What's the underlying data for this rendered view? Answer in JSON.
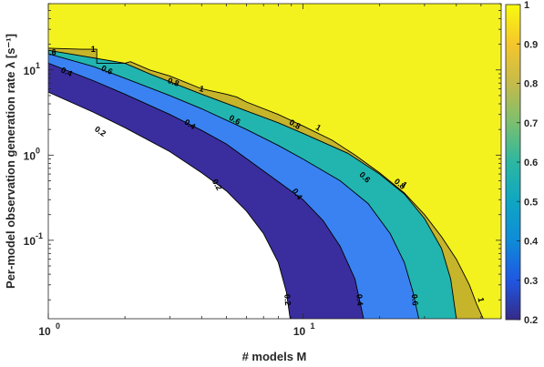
{
  "chart_data": {
    "type": "contour",
    "title": "",
    "xlabel": "# models M",
    "ylabel": "Per-model observation generation rate λ [s⁻¹]",
    "xscale": "log",
    "yscale": "log",
    "xlim": [
      1,
      60
    ],
    "ylim": [
      0.012,
      60
    ],
    "x_ticks": [
      {
        "value": 1,
        "label": "10",
        "exp": "0"
      },
      {
        "value": 10,
        "label": "10",
        "exp": "1"
      }
    ],
    "y_ticks": [
      {
        "value": 0.1,
        "label": "10",
        "exp": "-1"
      },
      {
        "value": 1,
        "label": "10",
        "exp": "0"
      },
      {
        "value": 10,
        "label": "10",
        "exp": "1"
      }
    ],
    "colorbar": {
      "range": [
        0.2,
        1
      ],
      "ticks": [
        "0.2",
        "0.3",
        "0.4",
        "0.5",
        "0.6",
        "0.7",
        "0.8",
        "0.9",
        "1"
      ],
      "colormap": "parula"
    },
    "levels": [
      "0.2",
      "0.4",
      "0.6",
      "0.8",
      "1"
    ],
    "fills": {
      "background": "#ffffff",
      "level_0_2": "#3a2e9e",
      "level_0_4": "#3a82f2",
      "level_0_6": "#22b5b0",
      "level_0_8": "#c6b42b",
      "level_1": "#f4f21e"
    },
    "contours": [
      {
        "level": "0.2",
        "points": [
          [
            1,
            5.5
          ],
          [
            1.5,
            3.2
          ],
          [
            2,
            2.1
          ],
          [
            3,
            1.1
          ],
          [
            4,
            0.62
          ],
          [
            5,
            0.38
          ],
          [
            6,
            0.22
          ],
          [
            7,
            0.12
          ],
          [
            8,
            0.055
          ],
          [
            8.6,
            0.025
          ],
          [
            8.9,
            0.012
          ]
        ]
      },
      {
        "level": "0.4",
        "points": [
          [
            1,
            12
          ],
          [
            1.5,
            7.5
          ],
          [
            2,
            5.2
          ],
          [
            3,
            3
          ],
          [
            4,
            1.95
          ],
          [
            5,
            1.35
          ],
          [
            7,
            0.65
          ],
          [
            10,
            0.3
          ],
          [
            12,
            0.17
          ],
          [
            14,
            0.085
          ],
          [
            16,
            0.035
          ],
          [
            17.3,
            0.012
          ]
        ]
      },
      {
        "level": "0.6",
        "points": [
          [
            1,
            15.5
          ],
          [
            1.5,
            11
          ],
          [
            2,
            8
          ],
          [
            3,
            5
          ],
          [
            4,
            3.5
          ],
          [
            6,
            2
          ],
          [
            8,
            1.3
          ],
          [
            10,
            0.9
          ],
          [
            14,
            0.5
          ],
          [
            18,
            0.27
          ],
          [
            22,
            0.12
          ],
          [
            25,
            0.055
          ],
          [
            27,
            0.025
          ],
          [
            28.5,
            0.012
          ]
        ]
      },
      {
        "level": "0.8",
        "points": [
          [
            1,
            17
          ],
          [
            2,
            12
          ],
          [
            2.5,
            9
          ],
          [
            4,
            5.2
          ],
          [
            6,
            3.3
          ],
          [
            8,
            2.4
          ],
          [
            10,
            1.8
          ],
          [
            15,
            1.05
          ],
          [
            20,
            0.6
          ],
          [
            25,
            0.35
          ],
          [
            30,
            0.18
          ],
          [
            35,
            0.08
          ],
          [
            38,
            0.035
          ],
          [
            40,
            0.012
          ]
        ]
      },
      {
        "level": "1",
        "points": [
          [
            1,
            18
          ],
          [
            1.35,
            17.5
          ],
          [
            1.55,
            17.5
          ],
          [
            1.55,
            12
          ],
          [
            2,
            12
          ],
          [
            2.1,
            12.5
          ],
          [
            2.5,
            10
          ],
          [
            3,
            8.5
          ],
          [
            4,
            6
          ],
          [
            5,
            5.2
          ],
          [
            5.5,
            4.8
          ],
          [
            6,
            4.2
          ],
          [
            8,
            3
          ],
          [
            10,
            2.2
          ],
          [
            13,
            1.5
          ],
          [
            16,
            1
          ],
          [
            20,
            0.62
          ],
          [
            25,
            0.36
          ],
          [
            30,
            0.2
          ],
          [
            35,
            0.11
          ],
          [
            40,
            0.06
          ],
          [
            45,
            0.03
          ],
          [
            48,
            0.018
          ],
          [
            51,
            0.012
          ]
        ]
      }
    ],
    "labels": [
      {
        "text": "0.2",
        "x": 1.6,
        "y": 1.9,
        "rot": 35
      },
      {
        "text": "0.2",
        "x": 4.6,
        "y": 0.45,
        "rot": 60
      },
      {
        "text": "0.2",
        "x": 8.7,
        "y": 0.02,
        "rot": 85
      },
      {
        "text": "0.4",
        "x": 1.18,
        "y": 9.5,
        "rot": 25
      },
      {
        "text": "0.4",
        "x": 3.6,
        "y": 2.3,
        "rot": 35
      },
      {
        "text": "0.4",
        "x": 9.5,
        "y": 0.35,
        "rot": 55
      },
      {
        "text": "0.4",
        "x": 16.7,
        "y": 0.02,
        "rot": 85
      },
      {
        "text": "0.6",
        "x": 1.02,
        "y": 16,
        "rot": 0
      },
      {
        "text": "0.6",
        "x": 1.7,
        "y": 10,
        "rot": 25
      },
      {
        "text": "0.6",
        "x": 5.4,
        "y": 2.6,
        "rot": 30
      },
      {
        "text": "0.6",
        "x": 17.5,
        "y": 0.55,
        "rot": 45
      },
      {
        "text": "0.6",
        "x": 27.5,
        "y": 0.02,
        "rot": 85
      },
      {
        "text": "0.8",
        "x": 3.1,
        "y": 7.2,
        "rot": 20
      },
      {
        "text": "0.8",
        "x": 9.3,
        "y": 2.3,
        "rot": 30
      },
      {
        "text": "0.8",
        "x": 24,
        "y": 0.46,
        "rot": 40
      },
      {
        "text": "1",
        "x": 1.5,
        "y": 17.5,
        "rot": 0
      },
      {
        "text": "1",
        "x": 4,
        "y": 6,
        "rot": 15
      },
      {
        "text": "1",
        "x": 11.5,
        "y": 2.1,
        "rot": 30
      },
      {
        "text": "1",
        "x": 25,
        "y": 0.45,
        "rot": 40
      },
      {
        "text": "1",
        "x": 50,
        "y": 0.02,
        "rot": 80
      }
    ]
  }
}
